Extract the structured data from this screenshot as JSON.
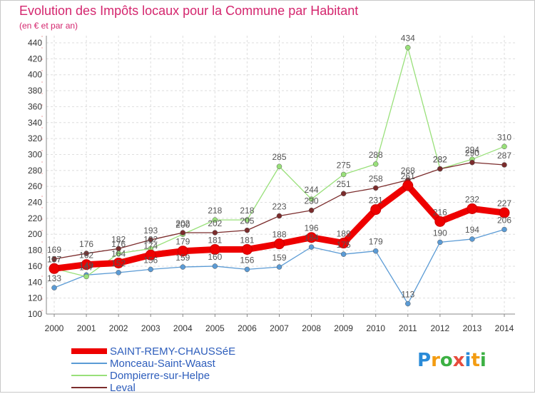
{
  "title": "Evolution des Impôts locaux pour la Commune par Habitant",
  "subtitle": "(en € et par an)",
  "logo": {
    "letters": [
      {
        "ch": "P",
        "color": "#2a8bd8"
      },
      {
        "ch": "r",
        "color": "#f39c12"
      },
      {
        "ch": "o",
        "color": "#3cb043"
      },
      {
        "ch": "x",
        "color": "#e74c3c"
      },
      {
        "ch": "i",
        "color": "#2a8bd8"
      },
      {
        "ch": "t",
        "color": "#f39c12"
      },
      {
        "ch": "i",
        "color": "#3cb043"
      }
    ]
  },
  "chart_data": {
    "type": "line",
    "title": "Evolution des Impôts locaux pour la Commune par Habitant",
    "ylabel": "(en € et par an)",
    "x": [
      2000,
      2001,
      2002,
      2003,
      2004,
      2005,
      2006,
      2007,
      2008,
      2009,
      2010,
      2011,
      2012,
      2013,
      2014
    ],
    "ylim": [
      100,
      440
    ],
    "yticks": [
      100,
      120,
      140,
      160,
      180,
      200,
      220,
      240,
      260,
      280,
      300,
      320,
      340,
      360,
      380,
      400,
      420,
      440
    ],
    "grid": true,
    "legend": "bottom-left",
    "series": [
      {
        "name": "SAINT-REMY-CHAUSSéE",
        "color": "#ee0000",
        "values": [
          157,
          162,
          164,
          174,
          179,
          181,
          181,
          188,
          196,
          189,
          231,
          261,
          216,
          232,
          227
        ]
      },
      {
        "name": "Monceau-Saint-Waast",
        "color": "#5b9bd5",
        "values": [
          133,
          149,
          152,
          156,
          159,
          160,
          156,
          159,
          184,
          175,
          179,
          113,
          190,
          194,
          206
        ]
      },
      {
        "name": "Dompierre-sur-Helpe",
        "color": "#99e07a",
        "values": [
          157,
          147,
          176,
          182,
          200,
          218,
          218,
          285,
          244,
          275,
          288,
          434,
          282,
          294,
          310
        ]
      },
      {
        "name": "Leval",
        "color": "#7b2c2c",
        "values": [
          169,
          176,
          182,
          193,
          202,
          202,
          205,
          223,
          230,
          251,
          258,
          268,
          282,
          290,
          287
        ]
      }
    ]
  }
}
